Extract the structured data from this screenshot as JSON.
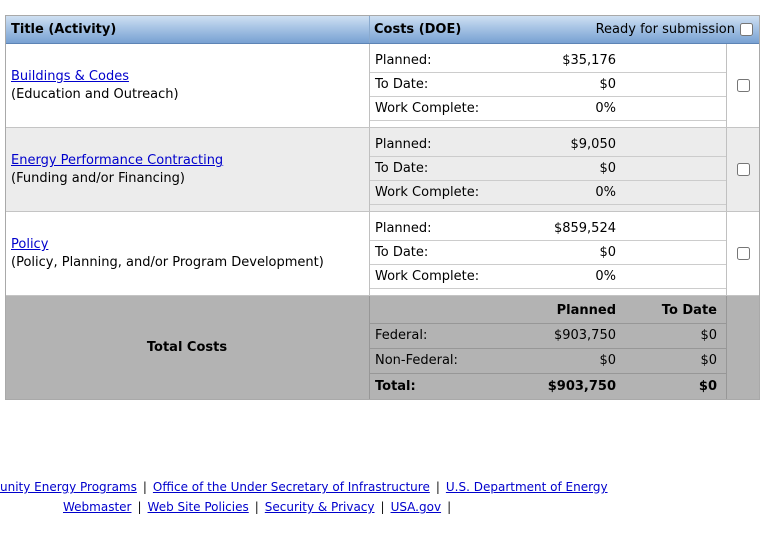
{
  "header": {
    "title_column": "Title (Activity)",
    "costs_column": "Costs (DOE)",
    "ready_label": "Ready for submission"
  },
  "cost_labels": {
    "planned": "Planned:",
    "to_date": "To Date:",
    "work_complete": "Work Complete:"
  },
  "rows": [
    {
      "title": "Buildings & Codes",
      "category": "(Education and Outreach)",
      "planned": "$35,176",
      "to_date": "$0",
      "work_complete": "0%"
    },
    {
      "title": "Energy Performance Contracting",
      "category": "(Funding and/or Financing)",
      "planned": "$9,050",
      "to_date": "$0",
      "work_complete": "0%"
    },
    {
      "title": "Policy",
      "category": "(Policy, Planning, and/or Program Development)",
      "planned": "$859,524",
      "to_date": "$0",
      "work_complete": "0%"
    }
  ],
  "totals": {
    "label": "Total Costs",
    "planned_header": "Planned",
    "to_date_header": "To Date",
    "rows": [
      {
        "label": "Federal:",
        "planned": "$903,750",
        "to_date": "$0"
      },
      {
        "label": "Non-Federal:",
        "planned": "$0",
        "to_date": "$0"
      },
      {
        "label": "Total:",
        "planned": "$903,750",
        "to_date": "$0"
      }
    ]
  },
  "footer": {
    "separator": "|",
    "line1": [
      "unity Energy Programs",
      "Office of the Under Secretary of Infrastructure",
      "U.S. Department of Energy"
    ],
    "line2": [
      "Webmaster",
      "Web Site Policies",
      "Security & Privacy",
      "USA.gov"
    ]
  },
  "colors": {
    "link": "#0000cc",
    "header_gradient_top": "#cfe0f2",
    "header_gradient_bottom": "#78a1d2",
    "row_alt_bg": "#ececec",
    "totals_bg": "#b3b3b3"
  }
}
